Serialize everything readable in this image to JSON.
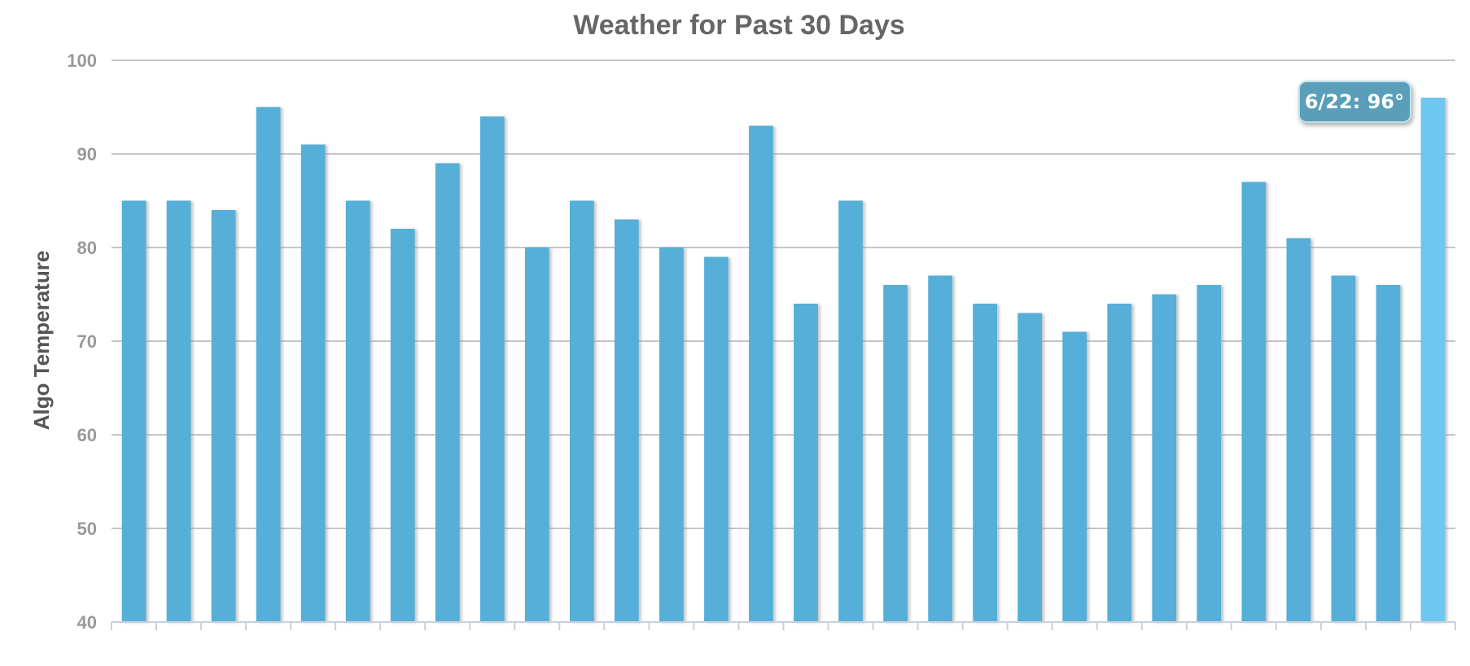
{
  "chart_data": {
    "type": "bar",
    "title": "Weather for Past 30 Days",
    "xlabel": "",
    "ylabel": "Algo Temperature",
    "ylim": [
      40,
      100
    ],
    "yticks": [
      40,
      50,
      60,
      70,
      80,
      90,
      100
    ],
    "grid": true,
    "values": [
      85,
      85,
      84,
      95,
      91,
      85,
      82,
      89,
      94,
      80,
      85,
      83,
      80,
      79,
      93,
      74,
      85,
      76,
      77,
      74,
      73,
      71,
      74,
      75,
      76,
      87,
      81,
      77,
      76,
      96
    ],
    "highlighted_index": 29,
    "tooltip": "6/22: 96°",
    "colors": {
      "bar": "#54afd8",
      "bar_highlight": "#6dc7ee",
      "bar_shadow": "#d0d0d0",
      "tooltip_bg": "#5a9eb9",
      "tooltip_border": "#bfe1ee"
    }
  }
}
